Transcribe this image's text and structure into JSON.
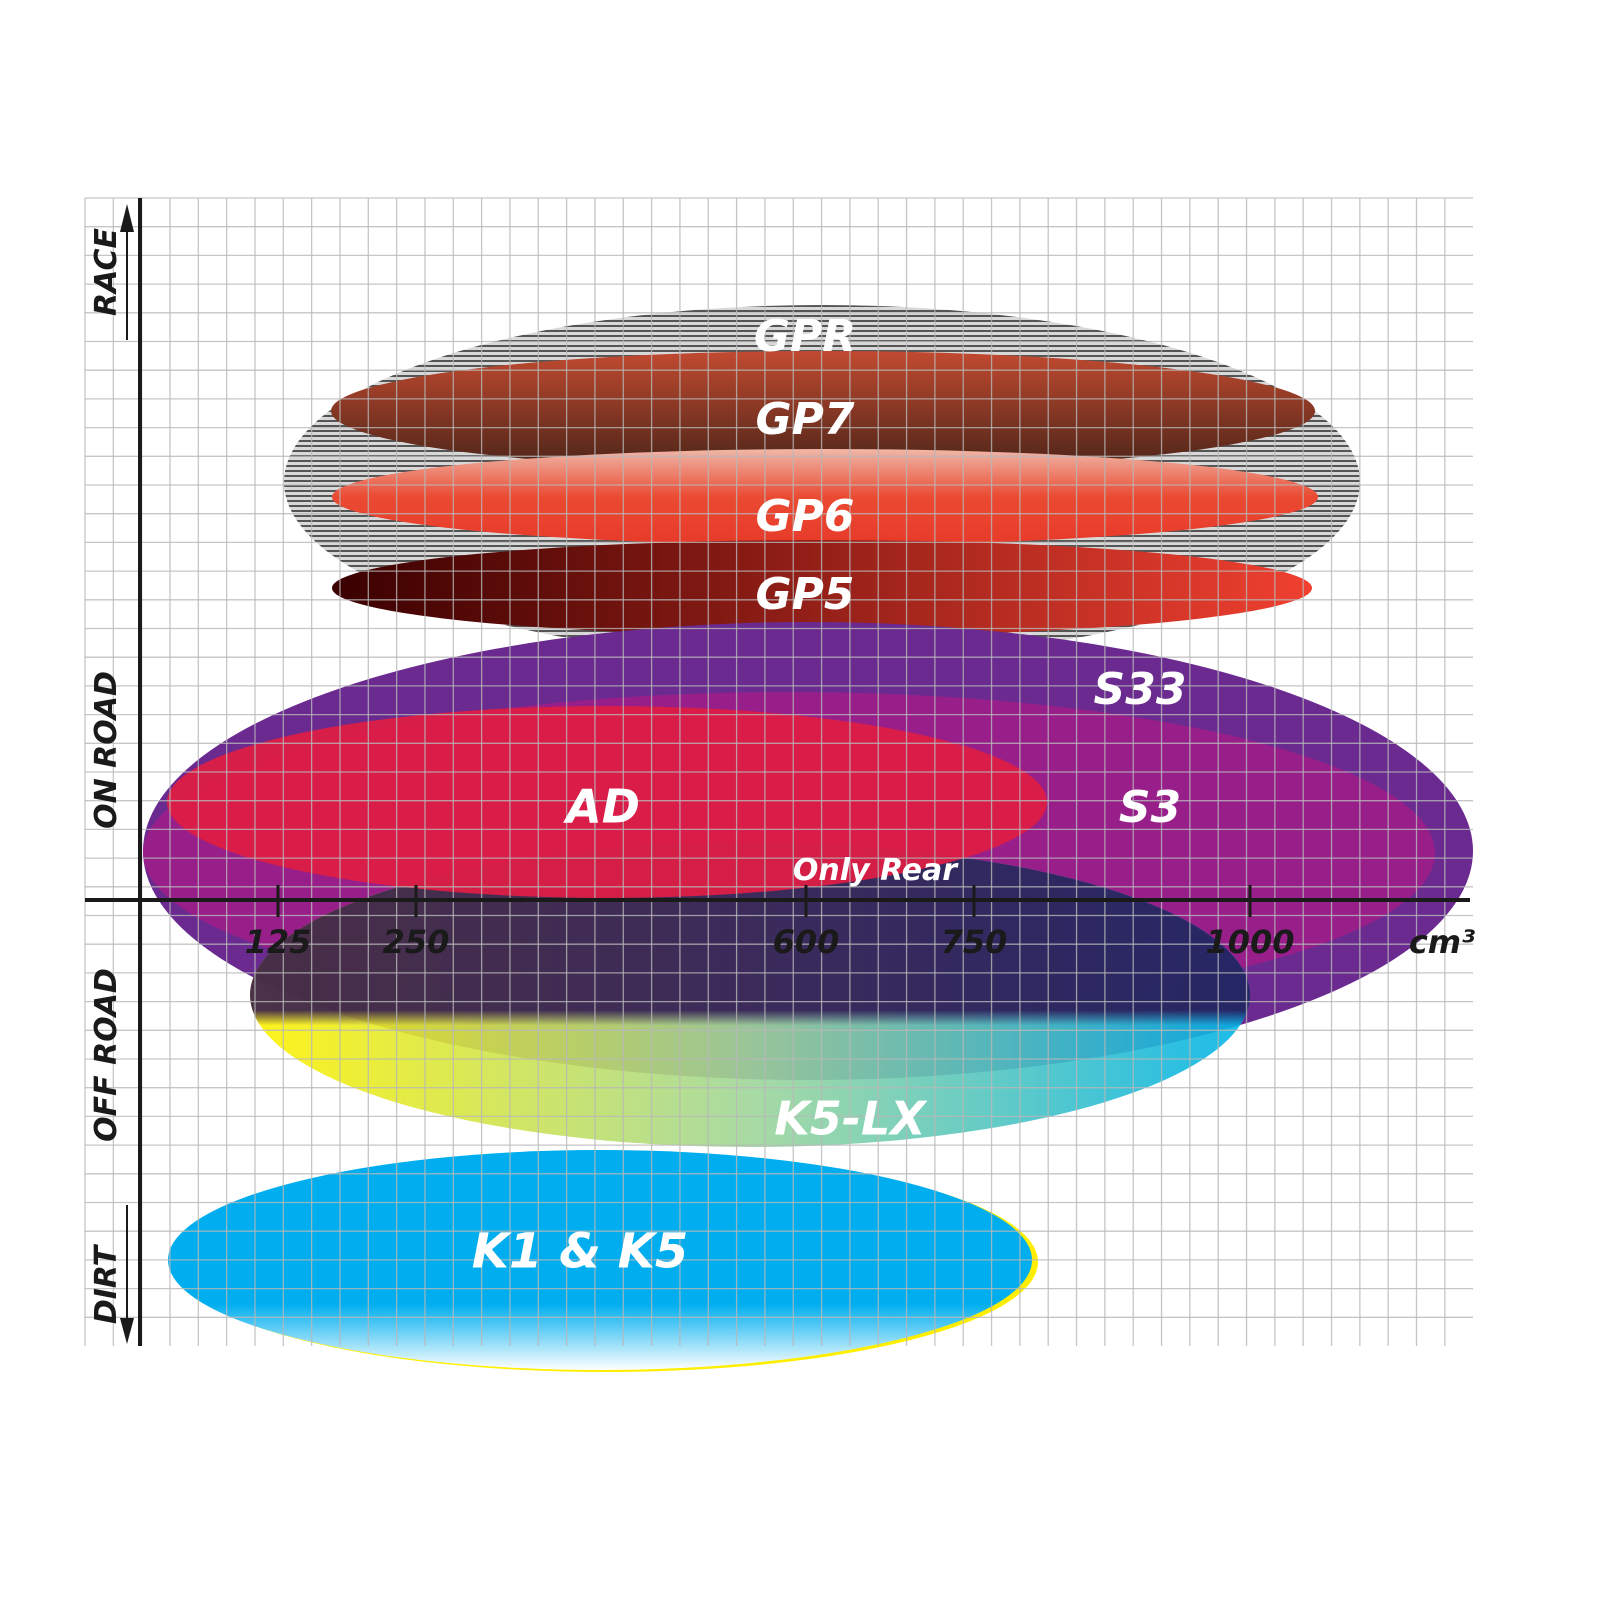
{
  "chart_data": {
    "type": "positioning-map",
    "title": "",
    "x_axis": {
      "unit": "cm³",
      "ticks": [
        125,
        250,
        600,
        750,
        1000
      ]
    },
    "y_axis": {
      "labels": [
        "RACE",
        "ON ROAD",
        "OFF ROAD",
        "DIRT"
      ]
    },
    "grid": true,
    "products": [
      {
        "name": "GPR",
        "color": "#9a9a9a",
        "pattern": "hatched"
      },
      {
        "name": "GP7",
        "color": "#7a3a2a"
      },
      {
        "name": "GP6",
        "color": "#e8402e"
      },
      {
        "name": "GP5",
        "color": "#5a0a0a"
      },
      {
        "name": "S33",
        "color": "#6a2a90"
      },
      {
        "name": "S3",
        "color": "#9b1f8a"
      },
      {
        "name": "AD",
        "color": "#dc1e44"
      },
      {
        "name": "K5-LX",
        "color": "#18b8e0"
      },
      {
        "name": "K1 & K5",
        "color": "#00aeef"
      }
    ],
    "annotation": "Only Rear"
  }
}
